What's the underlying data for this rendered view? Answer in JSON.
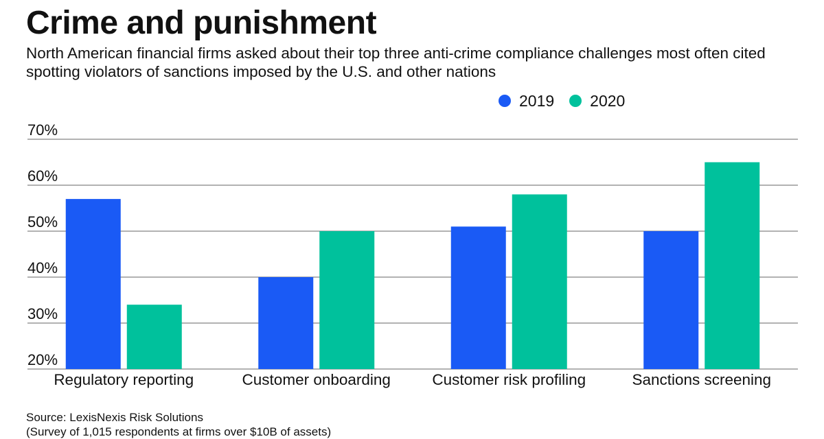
{
  "title": "Crime and punishment",
  "subtitle": "North American financial firms asked about their top three anti-crime compliance challenges most often cited spotting violators of sanctions imposed by the U.S. and other nations",
  "source_line1": "Source: LexisNexis Risk Solutions",
  "source_line2": "(Survey of 1,015 respondents at firms over $10B of assets)",
  "colors": {
    "2019": "#1a5af5",
    "2020": "#00c19c",
    "grid": "#666666"
  },
  "chart_data": {
    "type": "bar",
    "categories": [
      "Regulatory reporting",
      "Customer onboarding",
      "Customer risk profiling",
      "Sanctions screening"
    ],
    "series": [
      {
        "name": "2019",
        "values": [
          57,
          40,
          51,
          50
        ]
      },
      {
        "name": "2020",
        "values": [
          34,
          50,
          58,
          65
        ]
      }
    ],
    "ylim": [
      20,
      70
    ],
    "yticks": [
      "20%",
      "30%",
      "40%",
      "50%",
      "60%",
      "70%"
    ],
    "ytick_values": [
      20,
      30,
      40,
      50,
      60,
      70
    ],
    "legend": "top-right",
    "grid": true
  }
}
